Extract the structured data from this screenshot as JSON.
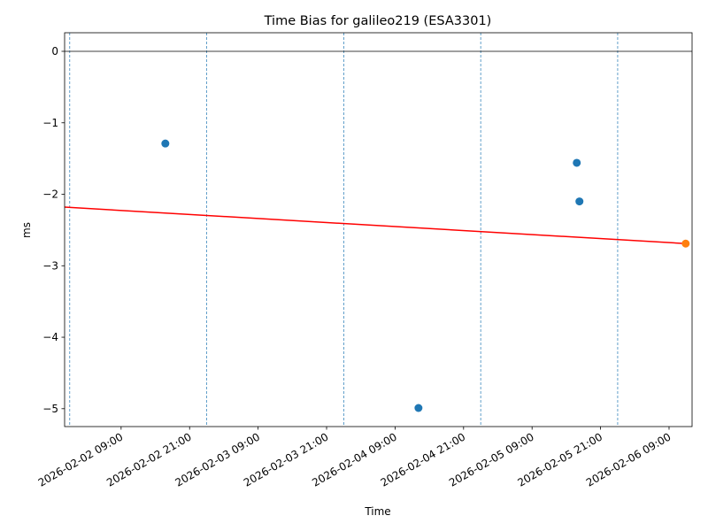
{
  "chart_data": {
    "type": "scatter",
    "title": "Time Bias for galileo219 (ESA3301)",
    "x_label": "Time",
    "y_label": "ms",
    "xlim": [
      "2026-02-01 23:06",
      "2026-02-06 13:02"
    ],
    "xticks": [
      "2026-02-02 09:00",
      "2026-02-02 21:00",
      "2026-02-03 09:00",
      "2026-02-03 21:00",
      "2026-02-04 09:00",
      "2026-02-04 21:00",
      "2026-02-05 09:00",
      "2026-02-05 21:00",
      "2026-02-06 09:00"
    ],
    "ylim": [
      -5.25,
      0.26
    ],
    "yticks": [
      {
        "value": -5,
        "label": "−5"
      },
      {
        "value": -4,
        "label": "−4"
      },
      {
        "value": -3,
        "label": "−3"
      },
      {
        "value": -2,
        "label": "−2"
      },
      {
        "value": -1,
        "label": "−1"
      },
      0
    ],
    "series": [
      {
        "color": "#1f77b4",
        "x": [
          "2026-02-02 16:45",
          "2026-02-04 13:06",
          "2026-02-05 16:50",
          "2026-02-05 17:18"
        ],
        "values": [
          -1.29,
          -4.99,
          -1.56,
          -2.1
        ]
      },
      {
        "color": "#ff7f0e",
        "x": [
          "2026-02-06 11:55"
        ],
        "values": [
          -2.69
        ]
      }
    ],
    "trend_line": {
      "color": "#ff0000",
      "x": [
        "2026-02-01 23:06",
        "2026-02-06 11:55"
      ],
      "values": [
        -2.18,
        -2.69
      ]
    },
    "reference_lines": {
      "color": "#1f77b4",
      "x": [
        "2026-02-02 00:00",
        "2026-02-03 00:00",
        "2026-02-04 00:00",
        "2026-02-05 00:00",
        "2026-02-06 00:00"
      ]
    },
    "zero_line": {
      "color": "#000000",
      "value": 0
    }
  }
}
